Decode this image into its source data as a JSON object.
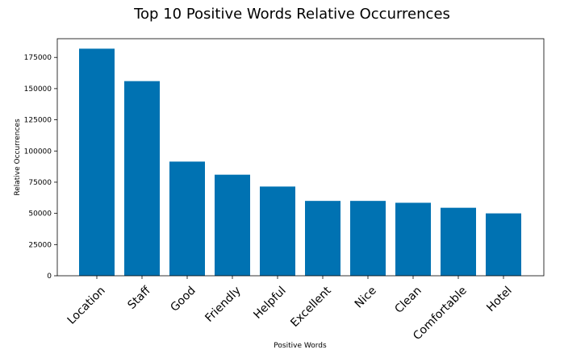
{
  "chart_data": {
    "type": "bar",
    "title": "Top 10 Positive Words Relative Occurrences",
    "xlabel": "Positive Words",
    "ylabel": "Relative Occurrences",
    "categories": [
      "Location",
      "Staff",
      "Good",
      "Friendly",
      "Helpful",
      "Excellent",
      "Nice",
      "Clean",
      "Comfortable",
      "Hotel"
    ],
    "values": [
      182000,
      156000,
      91500,
      81000,
      71500,
      60000,
      60000,
      58500,
      54500,
      50000
    ],
    "yticks": [
      0,
      25000,
      50000,
      75000,
      100000,
      125000,
      150000,
      175000
    ],
    "ylim": [
      0,
      190000
    ],
    "bar_color": "#0072b2",
    "grid": false
  }
}
